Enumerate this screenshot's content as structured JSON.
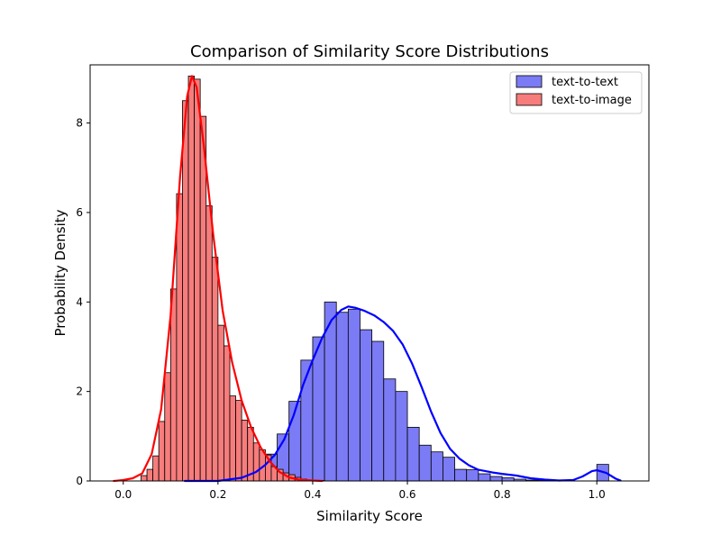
{
  "chart_data": {
    "type": "histogram",
    "title": "Comparison of Similarity Score Distributions",
    "xlabel": "Similarity Score",
    "ylabel": "Probability Density",
    "xlim": [
      -0.07,
      1.11
    ],
    "ylim": [
      0,
      9.3
    ],
    "xticks": [
      0.0,
      0.2,
      0.4,
      0.6,
      0.8,
      1.0
    ],
    "xtick_labels": [
      "0.0",
      "0.2",
      "0.4",
      "0.6",
      "0.8",
      "1.0"
    ],
    "yticks": [
      0,
      2,
      4,
      6,
      8
    ],
    "ytick_labels": [
      "0",
      "2",
      "4",
      "6",
      "8"
    ],
    "grid": false,
    "legend_position": "top-right",
    "series": [
      {
        "name": "text-to-text",
        "fill_color": "#7b7bf5",
        "kde_color": "#0000ff",
        "bin_width": 0.025,
        "bin_start": 0.3,
        "densities": [
          0.6,
          1.05,
          1.78,
          2.7,
          3.22,
          4.0,
          3.77,
          3.84,
          3.38,
          3.12,
          2.28,
          2.0,
          1.2,
          0.8,
          0.65,
          0.53,
          0.26,
          0.25,
          0.16,
          0.1,
          0.07,
          0.04,
          0.02,
          0.02,
          0.0,
          0.0,
          0.0,
          0.0,
          0.37
        ],
        "kde": [
          [
            0.13,
            0.0
          ],
          [
            0.2,
            0.0
          ],
          [
            0.25,
            0.07
          ],
          [
            0.28,
            0.2
          ],
          [
            0.3,
            0.36
          ],
          [
            0.32,
            0.58
          ],
          [
            0.34,
            0.93
          ],
          [
            0.36,
            1.47
          ],
          [
            0.38,
            2.15
          ],
          [
            0.4,
            2.7
          ],
          [
            0.42,
            3.2
          ],
          [
            0.44,
            3.6
          ],
          [
            0.46,
            3.82
          ],
          [
            0.475,
            3.9
          ],
          [
            0.49,
            3.87
          ],
          [
            0.51,
            3.8
          ],
          [
            0.53,
            3.7
          ],
          [
            0.55,
            3.55
          ],
          [
            0.57,
            3.35
          ],
          [
            0.59,
            3.05
          ],
          [
            0.61,
            2.62
          ],
          [
            0.63,
            2.1
          ],
          [
            0.65,
            1.55
          ],
          [
            0.67,
            1.07
          ],
          [
            0.69,
            0.72
          ],
          [
            0.71,
            0.5
          ],
          [
            0.73,
            0.35
          ],
          [
            0.75,
            0.25
          ],
          [
            0.78,
            0.19
          ],
          [
            0.8,
            0.16
          ],
          [
            0.83,
            0.12
          ],
          [
            0.86,
            0.06
          ],
          [
            0.89,
            0.03
          ],
          [
            0.92,
            0.01
          ],
          [
            0.95,
            0.02
          ],
          [
            0.97,
            0.1
          ],
          [
            0.99,
            0.22
          ],
          [
            1.0,
            0.24
          ],
          [
            1.02,
            0.18
          ],
          [
            1.04,
            0.05
          ],
          [
            1.05,
            0.01
          ]
        ]
      },
      {
        "name": "text-to-image",
        "fill_color": "#f77c7c",
        "kde_color": "#ff0000",
        "bin_width": 0.0125,
        "bin_start": 0.0375,
        "densities": [
          0.12,
          0.26,
          0.56,
          1.33,
          2.42,
          4.29,
          6.42,
          8.5,
          9.05,
          8.98,
          8.15,
          6.15,
          5.0,
          3.48,
          3.02,
          1.9,
          1.8,
          1.36,
          1.2,
          0.85,
          0.7,
          0.58,
          0.32,
          0.26,
          0.18,
          0.14,
          0.08,
          0.04,
          0.02,
          0.01,
          0.01
        ],
        "kde": [
          [
            -0.02,
            0.0
          ],
          [
            0.0,
            0.02
          ],
          [
            0.02,
            0.06
          ],
          [
            0.04,
            0.17
          ],
          [
            0.06,
            0.6
          ],
          [
            0.08,
            1.6
          ],
          [
            0.1,
            3.7
          ],
          [
            0.12,
            6.8
          ],
          [
            0.135,
            8.6
          ],
          [
            0.145,
            9.05
          ],
          [
            0.155,
            8.8
          ],
          [
            0.17,
            7.5
          ],
          [
            0.19,
            5.5
          ],
          [
            0.21,
            3.8
          ],
          [
            0.23,
            2.65
          ],
          [
            0.25,
            1.8
          ],
          [
            0.27,
            1.2
          ],
          [
            0.29,
            0.75
          ],
          [
            0.31,
            0.43
          ],
          [
            0.33,
            0.2
          ],
          [
            0.35,
            0.08
          ],
          [
            0.37,
            0.03
          ],
          [
            0.4,
            0.01
          ],
          [
            0.42,
            0.0
          ]
        ]
      }
    ]
  }
}
